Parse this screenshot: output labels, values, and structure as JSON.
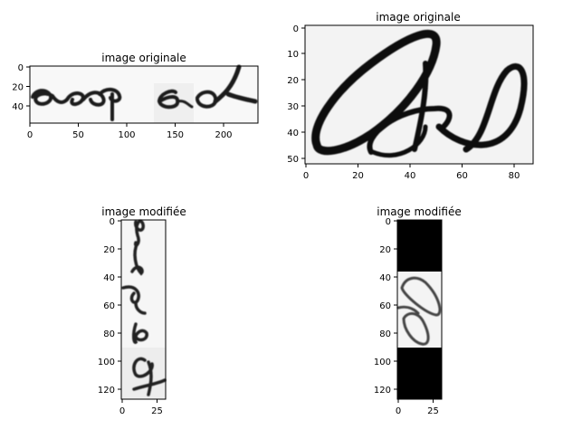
{
  "panels": [
    {
      "title": "image originale",
      "xticks": [
        "0",
        "50",
        "100",
        "150",
        "200"
      ],
      "yticks": [
        "0",
        "20",
        "40"
      ]
    },
    {
      "title": "image originale",
      "xticks": [
        "0",
        "20",
        "40",
        "60",
        "80"
      ],
      "yticks": [
        "0",
        "10",
        "20",
        "30",
        "40",
        "50"
      ]
    },
    {
      "title": "image modifiée",
      "xticks": [
        "0",
        "25"
      ],
      "yticks": [
        "0",
        "20",
        "40",
        "60",
        "80",
        "100",
        "120"
      ]
    },
    {
      "title": "image modifiée",
      "xticks": [
        "0",
        "25"
      ],
      "yticks": [
        "0",
        "20",
        "40",
        "60",
        "80",
        "100",
        "120"
      ]
    }
  ]
}
